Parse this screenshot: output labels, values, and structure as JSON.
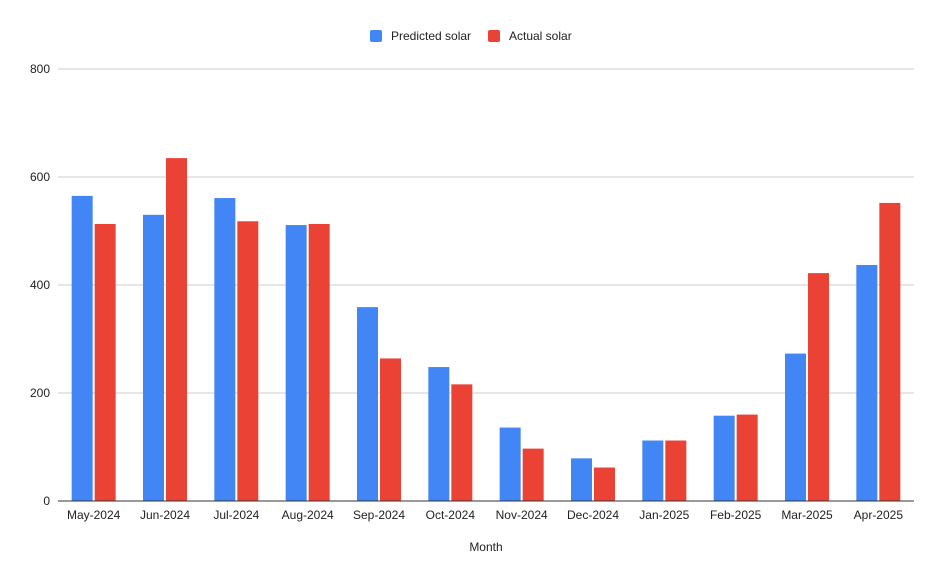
{
  "chart_data": {
    "type": "bar",
    "title": "",
    "xlabel": "Month",
    "ylabel": "",
    "ylim": [
      0,
      800
    ],
    "yticks": [
      0,
      200,
      400,
      600,
      800
    ],
    "grid": true,
    "legend_position": "top",
    "categories": [
      "May-2024",
      "Jun-2024",
      "Jul-2024",
      "Aug-2024",
      "Sep-2024",
      "Oct-2024",
      "Nov-2024",
      "Dec-2024",
      "Jan-2025",
      "Feb-2025",
      "Mar-2025",
      "Apr-2025"
    ],
    "series": [
      {
        "name": "Predicted solar",
        "color": "#4285f4",
        "values": [
          565,
          530,
          561,
          511,
          359,
          248,
          136,
          79,
          112,
          158,
          273,
          437
        ]
      },
      {
        "name": "Actual solar",
        "color": "#ea4335",
        "values": [
          513,
          635,
          518,
          513,
          264,
          216,
          97,
          62,
          112,
          160,
          422,
          552
        ]
      }
    ]
  }
}
